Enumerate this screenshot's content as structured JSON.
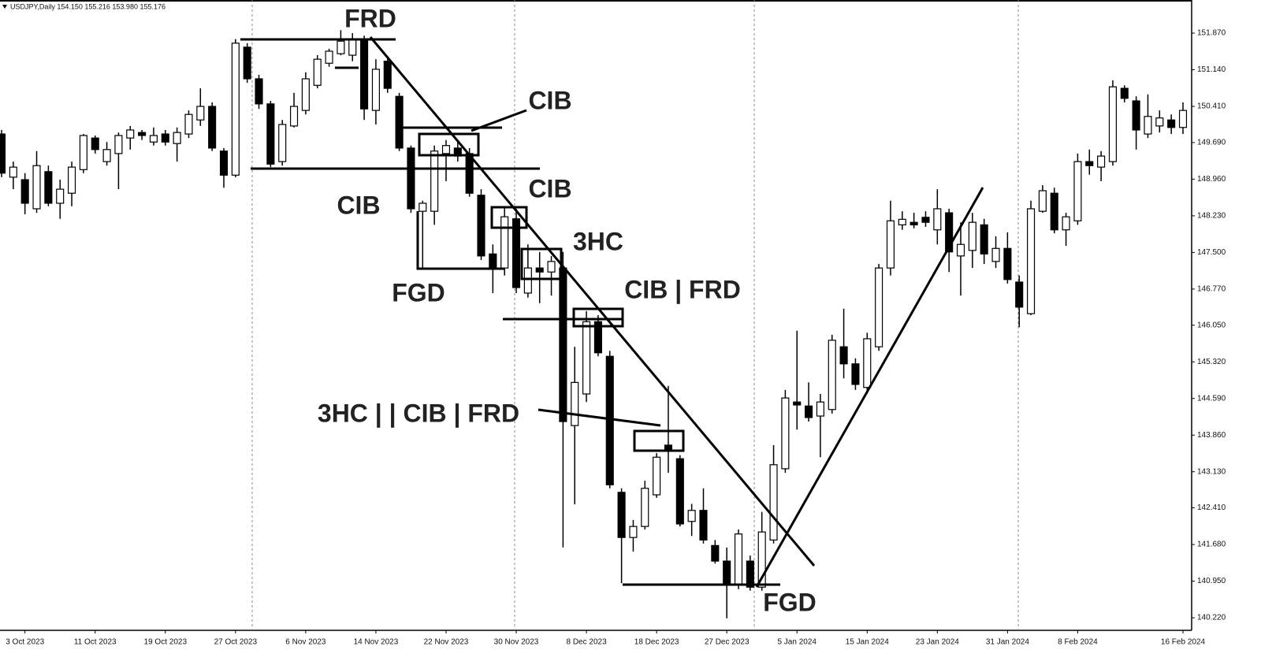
{
  "chart_data": {
    "type": "candlestick",
    "title": "USDJPY,Daily  154.150 155.216 153.980 155.176",
    "categories": [
      null,
      null,
      "3 Oct 2023",
      null,
      null,
      null,
      null,
      null,
      "11 Oct 2023",
      null,
      null,
      null,
      null,
      null,
      "19 Oct 2023",
      null,
      null,
      null,
      null,
      null,
      "27 Oct 2023",
      null,
      null,
      null,
      null,
      null,
      "6 Nov 2023",
      null,
      null,
      null,
      null,
      null,
      "14 Nov 2023",
      null,
      null,
      null,
      null,
      null,
      "22 Nov 2023",
      null,
      null,
      null,
      null,
      null,
      "30 Nov 2023",
      null,
      null,
      null,
      null,
      null,
      "8 Dec 2023",
      null,
      null,
      null,
      null,
      null,
      "18 Dec 2023",
      null,
      null,
      null,
      null,
      null,
      "27 Dec 2023",
      null,
      null,
      null,
      null,
      null,
      "5 Jan 2024",
      null,
      null,
      null,
      null,
      null,
      "15 Jan 2024",
      null,
      null,
      null,
      null,
      null,
      "23 Jan 2024",
      null,
      null,
      null,
      null,
      null,
      "31 Jan 2024",
      null,
      null,
      null,
      null,
      null,
      "8 Feb 2024",
      null,
      null,
      null,
      null,
      null,
      null,
      null,
      null,
      "16 Feb 2024"
    ],
    "open": [
      149.86,
      149.0,
      148.95,
      148.37,
      149.11,
      148.48,
      148.68,
      149.15,
      149.78,
      149.31,
      149.47,
      149.78,
      149.89,
      149.7,
      149.86,
      149.67,
      149.86,
      150.14,
      150.41,
      149.52,
      149.04,
      151.59,
      150.96,
      150.46,
      149.31,
      150.02,
      150.33,
      150.83,
      151.27,
      151.46,
      151.43,
      151.75,
      150.33,
      151.31,
      150.61,
      149.58,
      148.32,
      148.32,
      149.47,
      149.58,
      149.47,
      148.64,
      147.47,
      147.19,
      148.17,
      146.69,
      147.19,
      147.11,
      147.19,
      144.05,
      144.68,
      146.12,
      145.43,
      142.72,
      141.82,
      142.04,
      142.67,
      143.66,
      143.39,
      142.14,
      142.36,
      141.66,
      141.35,
      140.88,
      141.35,
      140.83,
      141.77,
      143.19,
      144.52,
      144.44,
      144.24,
      144.37,
      145.62,
      145.28,
      144.81,
      145.62,
      147.19,
      148.05,
      148.1,
      148.2,
      147.95,
      148.29,
      147.43,
      147.54,
      148.05,
      147.32,
      147.58,
      146.91,
      146.28,
      148.32,
      148.68,
      147.95,
      148.13,
      149.31,
      149.2,
      149.31,
      150.77,
      150.52,
      149.86,
      150.02,
      150.14,
      149.99
    ],
    "high": [
      149.94,
      149.31,
      149.08,
      149.52,
      149.23,
      148.95,
      149.31,
      149.86,
      149.83,
      149.7,
      149.89,
      150.02,
      149.94,
      149.99,
      149.94,
      149.99,
      150.33,
      150.77,
      150.49,
      149.58,
      151.75,
      151.67,
      151.04,
      150.52,
      150.14,
      150.68,
      151.09,
      151.43,
      151.56,
      151.93,
      151.87,
      151.82,
      151.35,
      151.4,
      150.68,
      149.63,
      148.53,
      149.63,
      149.74,
      149.7,
      149.58,
      148.76,
      147.66,
      148.42,
      148.37,
      147.66,
      147.51,
      147.43,
      147.51,
      145.62,
      146.33,
      146.25,
      145.54,
      142.8,
      142.17,
      142.95,
      143.5,
      144.84,
      143.46,
      142.49,
      142.8,
      141.77,
      141.62,
      141.98,
      141.46,
      142.33,
      143.66,
      144.76,
      145.94,
      144.91,
      144.68,
      145.86,
      146.38,
      145.39,
      145.9,
      147.27,
      148.53,
      148.32,
      148.29,
      148.32,
      148.76,
      148.37,
      148.1,
      148.29,
      148.17,
      147.82,
      147.9,
      147.04,
      148.53,
      148.84,
      148.79,
      148.29,
      149.47,
      149.55,
      149.52,
      150.93,
      150.83,
      150.61,
      150.65,
      150.33,
      150.25,
      150.49
    ],
    "low": [
      149.0,
      148.76,
      148.26,
      148.29,
      148.42,
      148.17,
      148.42,
      149.08,
      149.47,
      149.23,
      148.76,
      149.55,
      149.74,
      149.63,
      149.63,
      149.31,
      149.78,
      150.02,
      149.52,
      148.79,
      149.0,
      150.88,
      150.36,
      149.2,
      149.23,
      149.99,
      150.25,
      150.77,
      151.2,
      151.43,
      151.31,
      150.14,
      150.05,
      150.68,
      149.52,
      148.29,
      147.19,
      148.05,
      148.92,
      149.31,
      148.61,
      147.35,
      146.69,
      147.04,
      146.69,
      146.6,
      146.49,
      146.64,
      141.62,
      142.48,
      144.52,
      145.43,
      142.8,
      140.91,
      141.54,
      141.98,
      142.61,
      143.11,
      142.04,
      141.85,
      141.7,
      141.3,
      140.21,
      140.79,
      140.76,
      140.76,
      141.7,
      143.11,
      143.97,
      144.13,
      143.42,
      144.29,
      144.99,
      144.76,
      144.68,
      145.54,
      147.04,
      147.95,
      147.98,
      148.01,
      147.66,
      147.11,
      146.64,
      147.19,
      147.27,
      147.19,
      146.88,
      146.01,
      146.25,
      148.29,
      147.88,
      147.63,
      148.05,
      149.05,
      148.92,
      149.23,
      150.49,
      149.55,
      149.78,
      149.89,
      149.86,
      149.86
    ],
    "close": [
      149.08,
      149.2,
      148.48,
      149.23,
      148.48,
      148.76,
      149.2,
      149.83,
      149.55,
      149.55,
      149.83,
      149.94,
      149.83,
      149.83,
      149.7,
      149.89,
      150.25,
      150.41,
      149.58,
      149.04,
      151.67,
      150.96,
      150.46,
      149.26,
      150.05,
      150.41,
      150.96,
      151.35,
      151.51,
      151.71,
      151.75,
      150.36,
      151.15,
      150.77,
      149.58,
      148.37,
      148.48,
      149.52,
      149.63,
      149.42,
      148.68,
      147.43,
      147.19,
      148.21,
      146.8,
      147.19,
      147.11,
      147.32,
      144.13,
      144.91,
      146.12,
      145.5,
      142.87,
      141.82,
      142.04,
      142.8,
      143.42,
      143.58,
      142.09,
      142.36,
      141.77,
      141.35,
      140.88,
      141.89,
      140.83,
      141.93,
      143.27,
      144.6,
      144.46,
      144.21,
      144.52,
      145.75,
      145.28,
      144.87,
      145.78,
      147.19,
      148.13,
      148.16,
      148.05,
      148.1,
      148.37,
      147.51,
      147.66,
      148.1,
      147.47,
      147.58,
      146.96,
      146.41,
      148.37,
      148.73,
      147.95,
      148.21,
      149.31,
      149.23,
      149.42,
      150.8,
      150.57,
      149.94,
      150.21,
      150.18,
      149.99,
      150.33
    ],
    "up_color": "#ffffff",
    "down_color": "#000000",
    "ylim": [
      139.97,
      152.53
    ],
    "yticks": [
      {
        "value": 151.87,
        "label": "151.870"
      },
      {
        "value": 151.14,
        "label": "151.140"
      },
      {
        "value": 150.41,
        "label": "150.410"
      },
      {
        "value": 149.69,
        "label": "149.690"
      },
      {
        "value": 148.96,
        "label": "148.960"
      },
      {
        "value": 148.23,
        "label": "148.230"
      },
      {
        "value": 147.5,
        "label": "147.500"
      },
      {
        "value": 146.77,
        "label": "146.770"
      },
      {
        "value": 146.05,
        "label": "146.050"
      },
      {
        "value": 145.32,
        "label": "145.320"
      },
      {
        "value": 144.59,
        "label": "144.590"
      },
      {
        "value": 143.86,
        "label": "143.860"
      },
      {
        "value": 143.13,
        "label": "143.130"
      },
      {
        "value": 142.41,
        "label": "142.410"
      },
      {
        "value": 141.68,
        "label": "141.680"
      },
      {
        "value": 140.95,
        "label": "140.950"
      },
      {
        "value": 140.22,
        "label": "140.220"
      }
    ],
    "grid": false,
    "annotations": [
      "FRD",
      "CIB",
      "CIB",
      "CIB",
      "3HC",
      "FGD",
      "CIB | FRD",
      "3HC | | CIB | FRD",
      "FGD"
    ]
  }
}
